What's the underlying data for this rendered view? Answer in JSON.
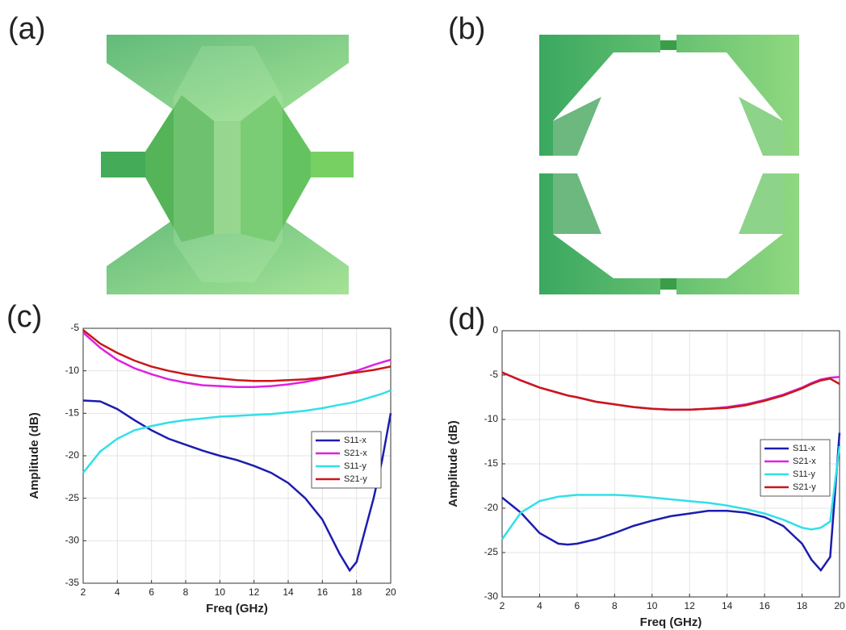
{
  "figure": {
    "labels": [
      "(a)",
      "(b)"
    ]
  },
  "chart_data": [
    {
      "type": "line",
      "panel_label": "(c)",
      "x_label": "Freq (GHz)",
      "y_label": "Amplitude (dB)",
      "x": [
        2,
        3,
        4,
        5,
        6,
        7,
        8,
        9,
        10,
        11,
        12,
        13,
        14,
        15,
        16,
        17,
        17.6,
        18,
        19,
        19.5,
        20
      ],
      "xlim": [
        2,
        20
      ],
      "xticks": [
        2,
        4,
        6,
        8,
        10,
        12,
        14,
        16,
        18,
        20
      ],
      "ylim": [
        -35,
        -5
      ],
      "yticks": [
        -35,
        -30,
        -25,
        -20,
        -15,
        -10,
        -5
      ],
      "grid": true,
      "legend": "right",
      "series": [
        {
          "name": "S11-x",
          "color": "#1c1cb0",
          "values": [
            -13.5,
            -13.6,
            -14.5,
            -15.8,
            -17,
            -18,
            -18.7,
            -19.4,
            -20,
            -20.5,
            -21.2,
            -22,
            -23.2,
            -25,
            -27.5,
            -31.5,
            -33.5,
            -32.5,
            -25,
            -20.5,
            -15
          ]
        },
        {
          "name": "S21-x",
          "color": "#e020e0",
          "values": [
            -5.5,
            -7.3,
            -8.7,
            -9.7,
            -10.4,
            -11,
            -11.4,
            -11.7,
            -11.8,
            -11.9,
            -11.9,
            -11.8,
            -11.6,
            -11.3,
            -10.9,
            -10.5,
            -10.2,
            -10,
            -9.3,
            -9,
            -8.7
          ]
        },
        {
          "name": "S11-y",
          "color": "#30e0e8",
          "values": [
            -22,
            -19.5,
            -18,
            -17,
            -16.5,
            -16.1,
            -15.8,
            -15.6,
            -15.4,
            -15.3,
            -15.2,
            -15.1,
            -14.9,
            -14.7,
            -14.4,
            -14,
            -13.8,
            -13.6,
            -13,
            -12.7,
            -12.3
          ]
        },
        {
          "name": "S21-y",
          "color": "#c81818",
          "values": [
            -5.2,
            -6.8,
            -7.9,
            -8.8,
            -9.5,
            -10,
            -10.4,
            -10.7,
            -10.9,
            -11.1,
            -11.2,
            -11.2,
            -11.1,
            -11,
            -10.8,
            -10.5,
            -10.3,
            -10.2,
            -9.9,
            -9.7,
            -9.5
          ]
        }
      ]
    },
    {
      "type": "line",
      "panel_label": "(d)",
      "x_label": "Freq (GHz)",
      "y_label": "Amplitude (dB)",
      "x": [
        2,
        3,
        4,
        5,
        5.5,
        6,
        7,
        8,
        9,
        10,
        11,
        12,
        13,
        14,
        15,
        16,
        17,
        18,
        18.5,
        19,
        19.5,
        20
      ],
      "xlim": [
        2,
        20
      ],
      "xticks": [
        2,
        4,
        6,
        8,
        10,
        12,
        14,
        16,
        18,
        20
      ],
      "ylim": [
        -30,
        0
      ],
      "yticks": [
        -30,
        -25,
        -20,
        -15,
        -10,
        -5,
        0
      ],
      "grid": true,
      "legend": "right",
      "series": [
        {
          "name": "S11-x",
          "color": "#1c1cb0",
          "values": [
            -18.8,
            -20.5,
            -22.8,
            -24,
            -24.1,
            -24,
            -23.5,
            -22.8,
            -22,
            -21.4,
            -20.9,
            -20.6,
            -20.3,
            -20.3,
            -20.5,
            -21,
            -22,
            -24,
            -25.8,
            -27,
            -25.5,
            -11.5
          ]
        },
        {
          "name": "S21-x",
          "color": "#e020e0",
          "values": [
            -4.7,
            -5.6,
            -6.4,
            -7,
            -7.3,
            -7.5,
            -8,
            -8.3,
            -8.6,
            -8.8,
            -8.9,
            -8.9,
            -8.8,
            -8.6,
            -8.3,
            -7.8,
            -7.2,
            -6.4,
            -5.9,
            -5.5,
            -5.3,
            -5.2
          ]
        },
        {
          "name": "S11-y",
          "color": "#30e0e8",
          "values": [
            -23.5,
            -20.5,
            -19.2,
            -18.7,
            -18.6,
            -18.5,
            -18.5,
            -18.5,
            -18.6,
            -18.8,
            -19,
            -19.2,
            -19.4,
            -19.7,
            -20.1,
            -20.6,
            -21.3,
            -22.2,
            -22.4,
            -22.2,
            -21.5,
            -13
          ]
        },
        {
          "name": "S21-y",
          "color": "#c81818",
          "values": [
            -4.7,
            -5.6,
            -6.4,
            -7,
            -7.3,
            -7.5,
            -8,
            -8.3,
            -8.6,
            -8.8,
            -8.9,
            -8.9,
            -8.8,
            -8.7,
            -8.4,
            -7.9,
            -7.3,
            -6.5,
            -6,
            -5.6,
            -5.4,
            -6
          ]
        }
      ]
    }
  ]
}
